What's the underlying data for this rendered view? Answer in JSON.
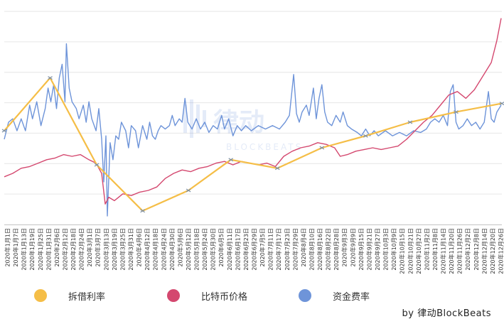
{
  "chart_data": {
    "type": "line",
    "x_tick_labels": [
      "2020年1月1日",
      "2020年1月7日",
      "2020年1月13日",
      "2020年1月19日",
      "2020年1月25日",
      "2020年1月31日",
      "2020年2月6日",
      "2020年2月12日",
      "2020年2月18日",
      "2020年2月24日",
      "2020年3月1日",
      "2020年3月7日",
      "2020年3月13日",
      "2020年3月19日",
      "2020年3月25日",
      "2020年3月31日",
      "2020年4月6日",
      "2020年4月12日",
      "2020年4月18日",
      "2020年4月24日",
      "2020年4月30日",
      "2020年5月6日",
      "2020年5月12日",
      "2020年5月18日",
      "2020年5月24日",
      "2020年5月30日",
      "2020年6月5日",
      "2020年6月11日",
      "2020年6月17日",
      "2020年6月23日",
      "2020年6月29日",
      "2020年7月5日",
      "2020年7月11日",
      "2020年7月17日",
      "2020年7月23日",
      "2020年7月29日",
      "2020年8月4日",
      "2020年8月10日",
      "2020年8月16日",
      "2020年8月22日",
      "2020年8月28日",
      "2020年9月3日",
      "2020年9月9日",
      "2020年9月15日",
      "2020年9月21日",
      "2020年9月27日",
      "2020年10月3日",
      "2020年10月9日",
      "2020年10月15日",
      "2020年10月21日",
      "2020年10月27日",
      "2020年11月2日",
      "2020年11月8日",
      "2020年11月14日",
      "2020年11月20日",
      "2020年11月26日",
      "2020年12月2日",
      "2020年12月8日",
      "2020年12月14日",
      "2020年12月20日",
      "2020年12月26日"
    ],
    "y_gridlines": 7,
    "series": [
      {
        "name": "拆借利率",
        "color": "#F5BE47",
        "marker_color": "#7B8FA6",
        "style": "markers",
        "points": [
          [
            0,
            0.55
          ],
          [
            65,
            0.86
          ],
          [
            131,
            0.35
          ],
          [
            196,
            0.08
          ],
          [
            261,
            0.2
          ],
          [
            321,
            0.38
          ],
          [
            387,
            0.33
          ],
          [
            450,
            0.45
          ],
          [
            512,
            0.52
          ],
          [
            575,
            0.6
          ],
          [
            640,
            0.66
          ],
          [
            705,
            0.71
          ]
        ]
      },
      {
        "name": "比特币价格",
        "color": "#D4486F",
        "points": [
          [
            0,
            0.28
          ],
          [
            12,
            0.3
          ],
          [
            24,
            0.33
          ],
          [
            36,
            0.34
          ],
          [
            48,
            0.36
          ],
          [
            60,
            0.38
          ],
          [
            72,
            0.39
          ],
          [
            84,
            0.41
          ],
          [
            96,
            0.4
          ],
          [
            108,
            0.41
          ],
          [
            120,
            0.38
          ],
          [
            130,
            0.36
          ],
          [
            138,
            0.3
          ],
          [
            143,
            0.12
          ],
          [
            148,
            0.16
          ],
          [
            156,
            0.14
          ],
          [
            168,
            0.18
          ],
          [
            180,
            0.17
          ],
          [
            192,
            0.19
          ],
          [
            204,
            0.2
          ],
          [
            216,
            0.22
          ],
          [
            228,
            0.27
          ],
          [
            240,
            0.3
          ],
          [
            252,
            0.32
          ],
          [
            264,
            0.31
          ],
          [
            276,
            0.33
          ],
          [
            288,
            0.34
          ],
          [
            300,
            0.36
          ],
          [
            312,
            0.37
          ],
          [
            324,
            0.35
          ],
          [
            336,
            0.37
          ],
          [
            348,
            0.36
          ],
          [
            360,
            0.35
          ],
          [
            372,
            0.36
          ],
          [
            384,
            0.34
          ],
          [
            396,
            0.4
          ],
          [
            408,
            0.43
          ],
          [
            420,
            0.45
          ],
          [
            432,
            0.46
          ],
          [
            444,
            0.48
          ],
          [
            456,
            0.47
          ],
          [
            468,
            0.45
          ],
          [
            476,
            0.4
          ],
          [
            486,
            0.41
          ],
          [
            498,
            0.43
          ],
          [
            510,
            0.44
          ],
          [
            522,
            0.45
          ],
          [
            534,
            0.44
          ],
          [
            546,
            0.45
          ],
          [
            558,
            0.46
          ],
          [
            570,
            0.5
          ],
          [
            582,
            0.55
          ],
          [
            594,
            0.6
          ],
          [
            606,
            0.64
          ],
          [
            618,
            0.7
          ],
          [
            630,
            0.76
          ],
          [
            642,
            0.78
          ],
          [
            654,
            0.74
          ],
          [
            666,
            0.79
          ],
          [
            678,
            0.87
          ],
          [
            690,
            0.95
          ],
          [
            698,
            1.08
          ],
          [
            704,
            1.21
          ]
        ]
      },
      {
        "name": "资金费率",
        "color": "#6E94D9",
        "points": [
          [
            0,
            0.5
          ],
          [
            6,
            0.6
          ],
          [
            12,
            0.62
          ],
          [
            18,
            0.55
          ],
          [
            24,
            0.62
          ],
          [
            30,
            0.55
          ],
          [
            36,
            0.7
          ],
          [
            40,
            0.62
          ],
          [
            46,
            0.72
          ],
          [
            52,
            0.58
          ],
          [
            58,
            0.68
          ],
          [
            62,
            0.8
          ],
          [
            66,
            0.72
          ],
          [
            70,
            0.82
          ],
          [
            74,
            0.68
          ],
          [
            78,
            0.86
          ],
          [
            82,
            0.94
          ],
          [
            86,
            0.72
          ],
          [
            88,
            1.06
          ],
          [
            92,
            0.8
          ],
          [
            96,
            0.72
          ],
          [
            102,
            0.68
          ],
          [
            106,
            0.62
          ],
          [
            112,
            0.7
          ],
          [
            116,
            0.6
          ],
          [
            120,
            0.72
          ],
          [
            124,
            0.62
          ],
          [
            130,
            0.55
          ],
          [
            134,
            0.68
          ],
          [
            138,
            0.5
          ],
          [
            141,
            0.25
          ],
          [
            144,
            0.52
          ],
          [
            146,
            0.05
          ],
          [
            150,
            0.48
          ],
          [
            154,
            0.38
          ],
          [
            158,
            0.52
          ],
          [
            162,
            0.5
          ],
          [
            166,
            0.6
          ],
          [
            172,
            0.55
          ],
          [
            176,
            0.45
          ],
          [
            180,
            0.58
          ],
          [
            186,
            0.55
          ],
          [
            190,
            0.45
          ],
          [
            196,
            0.58
          ],
          [
            202,
            0.5
          ],
          [
            206,
            0.6
          ],
          [
            210,
            0.52
          ],
          [
            214,
            0.5
          ],
          [
            218,
            0.55
          ],
          [
            222,
            0.58
          ],
          [
            228,
            0.56
          ],
          [
            234,
            0.58
          ],
          [
            238,
            0.64
          ],
          [
            242,
            0.58
          ],
          [
            248,
            0.62
          ],
          [
            252,
            0.6
          ],
          [
            256,
            0.74
          ],
          [
            260,
            0.6
          ],
          [
            266,
            0.56
          ],
          [
            272,
            0.62
          ],
          [
            278,
            0.56
          ],
          [
            284,
            0.6
          ],
          [
            290,
            0.54
          ],
          [
            296,
            0.58
          ],
          [
            302,
            0.56
          ],
          [
            308,
            0.64
          ],
          [
            312,
            0.56
          ],
          [
            318,
            0.62
          ],
          [
            324,
            0.52
          ],
          [
            330,
            0.58
          ],
          [
            336,
            0.55
          ],
          [
            342,
            0.58
          ],
          [
            350,
            0.55
          ],
          [
            360,
            0.58
          ],
          [
            370,
            0.56
          ],
          [
            380,
            0.58
          ],
          [
            390,
            0.56
          ],
          [
            398,
            0.6
          ],
          [
            404,
            0.64
          ],
          [
            410,
            0.88
          ],
          [
            414,
            0.65
          ],
          [
            418,
            0.6
          ],
          [
            422,
            0.66
          ],
          [
            428,
            0.7
          ],
          [
            432,
            0.64
          ],
          [
            438,
            0.8
          ],
          [
            442,
            0.62
          ],
          [
            446,
            0.74
          ],
          [
            450,
            0.82
          ],
          [
            454,
            0.66
          ],
          [
            458,
            0.6
          ],
          [
            464,
            0.58
          ],
          [
            470,
            0.64
          ],
          [
            476,
            0.6
          ],
          [
            480,
            0.66
          ],
          [
            486,
            0.58
          ],
          [
            492,
            0.56
          ],
          [
            500,
            0.54
          ],
          [
            506,
            0.52
          ],
          [
            512,
            0.56
          ],
          [
            518,
            0.52
          ],
          [
            524,
            0.55
          ],
          [
            530,
            0.52
          ],
          [
            540,
            0.55
          ],
          [
            550,
            0.52
          ],
          [
            560,
            0.54
          ],
          [
            570,
            0.52
          ],
          [
            580,
            0.55
          ],
          [
            590,
            0.54
          ],
          [
            598,
            0.56
          ],
          [
            604,
            0.6
          ],
          [
            610,
            0.62
          ],
          [
            616,
            0.6
          ],
          [
            622,
            0.64
          ],
          [
            628,
            0.58
          ],
          [
            632,
            0.78
          ],
          [
            636,
            0.82
          ],
          [
            640,
            0.6
          ],
          [
            644,
            0.56
          ],
          [
            650,
            0.58
          ],
          [
            656,
            0.62
          ],
          [
            662,
            0.58
          ],
          [
            668,
            0.6
          ],
          [
            674,
            0.56
          ],
          [
            680,
            0.6
          ],
          [
            686,
            0.78
          ],
          [
            690,
            0.62
          ],
          [
            694,
            0.6
          ],
          [
            698,
            0.66
          ],
          [
            704,
            0.7
          ]
        ]
      }
    ],
    "x_domain": [
      0,
      705
    ],
    "y_range": [
      0,
      1.25
    ]
  },
  "watermark": {
    "text": "律动",
    "subtext": "BLOCKBEATS"
  },
  "legend": [
    {
      "label": "拆借利率",
      "color": "#F5BE47"
    },
    {
      "label": "比特币价格",
      "color": "#D4486F"
    },
    {
      "label": "资金费率",
      "color": "#6E94D9"
    }
  ],
  "credit": "by 律动BlockBeats"
}
